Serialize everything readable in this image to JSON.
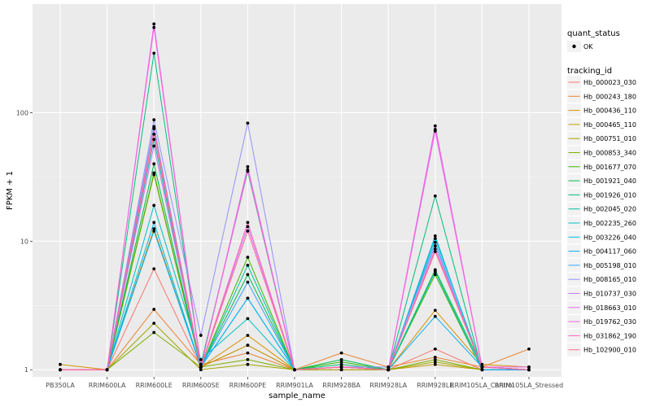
{
  "chart_data": {
    "type": "line",
    "xlabel": "sample_name",
    "ylabel": "FPKM + 1",
    "y_scale": "log10",
    "ylim": [
      0.88,
      700
    ],
    "y_ticks": [
      1,
      10,
      100
    ],
    "y_tick_labels": [
      "1",
      "10",
      "100"
    ],
    "grid": true,
    "legend_position": "right",
    "categories": [
      "PB350LA",
      "RRIM600LA",
      "RRIM600LE",
      "RRIM600SE",
      "RRIM600PE",
      "RRIM901LA",
      "RRIM928BA",
      "RRIM928LA",
      "RRIM928LE",
      "RRIM105LA_Control",
      "RRIM105LA_Stressed"
    ],
    "shape_legend": {
      "title": "quant_status",
      "entries": [
        "OK"
      ]
    },
    "color_legend_title": "tracking_id",
    "series": [
      {
        "name": "Hb_000023_030",
        "color": "#F8766D",
        "values": [
          1,
          1,
          6.1,
          1.05,
          1.55,
          1,
          1,
          1,
          1.45,
          1,
          1
        ]
      },
      {
        "name": "Hb_000243_180",
        "color": "#EA8331",
        "values": [
          1,
          1,
          2.95,
          1.1,
          1.35,
          1,
          1.35,
          1.05,
          1.25,
          1.05,
          1.45
        ]
      },
      {
        "name": "Hb_000436_110",
        "color": "#D89000",
        "values": [
          1.1,
          1,
          12.5,
          1.05,
          1.85,
          1,
          1.05,
          1,
          2.9,
          1.1,
          1.05
        ]
      },
      {
        "name": "Hb_000465_110",
        "color": "#C09B00",
        "values": [
          1,
          1,
          33,
          1.05,
          1.55,
          1,
          1.05,
          1,
          1.1,
          1,
          1
        ]
      },
      {
        "name": "Hb_000751_010",
        "color": "#A3A500",
        "values": [
          1,
          1,
          2.3,
          1.0,
          1.1,
          1,
          1,
          1,
          1.15,
          1,
          1
        ]
      },
      {
        "name": "Hb_000853_340",
        "color": "#7CAE00",
        "values": [
          1,
          1,
          1.95,
          1.05,
          1.2,
          1,
          1.05,
          1,
          1.2,
          1,
          1
        ]
      },
      {
        "name": "Hb_001677_070",
        "color": "#39B600",
        "values": [
          1,
          1,
          34,
          1.05,
          7.5,
          1,
          1.15,
          1,
          5.5,
          1,
          1
        ]
      },
      {
        "name": "Hb_001921_040",
        "color": "#00BB4E",
        "values": [
          1,
          1,
          40,
          1.05,
          5.5,
          1,
          1.2,
          1,
          6,
          1.05,
          1
        ]
      },
      {
        "name": "Hb_001926_010",
        "color": "#00BF7D",
        "values": [
          1,
          1,
          290,
          1.1,
          35,
          1,
          1.1,
          1,
          22.5,
          1,
          1
        ]
      },
      {
        "name": "Hb_002045_020",
        "color": "#00C1A3",
        "values": [
          1,
          1,
          62,
          1.05,
          6.5,
          1,
          1.05,
          1,
          5.8,
          1,
          1
        ]
      },
      {
        "name": "Hb_002235_260",
        "color": "#00BFC4",
        "values": [
          1,
          1,
          19,
          1.2,
          2.5,
          1,
          1.05,
          1,
          10.5,
          1.05,
          1
        ]
      },
      {
        "name": "Hb_003226_040",
        "color": "#00BAE0",
        "values": [
          1,
          1,
          14,
          1.05,
          3.6,
          1,
          1.05,
          1,
          11,
          1,
          1
        ]
      },
      {
        "name": "Hb_004117_060",
        "color": "#00B0F6",
        "values": [
          1,
          1,
          12,
          1.05,
          3.6,
          1,
          1.05,
          1,
          2.6,
          1.05,
          1
        ]
      },
      {
        "name": "Hb_005198_010",
        "color": "#35A2FF",
        "values": [
          1,
          1,
          78,
          1.05,
          4.8,
          1,
          1.05,
          1,
          9.8,
          1,
          1
        ]
      },
      {
        "name": "Hb_008165_010",
        "color": "#9590FF",
        "values": [
          1,
          1,
          88,
          1.85,
          83,
          1,
          1.05,
          1.05,
          9.2,
          1.05,
          1
        ]
      },
      {
        "name": "Hb_010737_030",
        "color": "#C77CFF",
        "values": [
          1,
          1,
          55,
          1.05,
          13,
          1,
          1.05,
          1,
          72,
          1.05,
          1
        ]
      },
      {
        "name": "Hb_018663_010",
        "color": "#E76BF3",
        "values": [
          1,
          1,
          490,
          1.05,
          38,
          1,
          1.05,
          1,
          79,
          1.05,
          1.05
        ]
      },
      {
        "name": "Hb_019762_030",
        "color": "#FA62DB",
        "values": [
          1,
          1,
          460,
          1.05,
          36,
          1,
          1.05,
          1,
          74,
          1.05,
          1
        ]
      },
      {
        "name": "Hb_031862_190",
        "color": "#FF62BC",
        "values": [
          1,
          1,
          75,
          1.05,
          14,
          1,
          1.05,
          1,
          8.7,
          1.05,
          1
        ]
      },
      {
        "name": "Hb_102900_010",
        "color": "#FF6C91",
        "values": [
          1,
          1,
          68,
          1.05,
          12,
          1,
          1.05,
          1,
          8.3,
          1.05,
          1
        ]
      }
    ]
  }
}
